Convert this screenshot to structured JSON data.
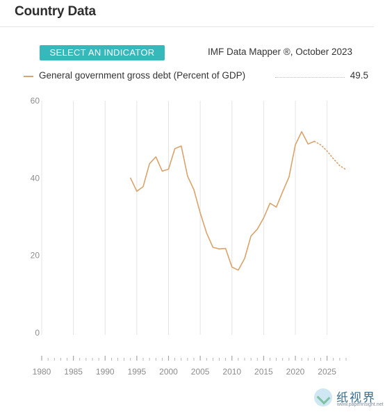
{
  "header": {
    "title": "Country Data"
  },
  "controls": {
    "select_indicator_label": "SELECT AN INDICATOR"
  },
  "source": "IMF Data Mapper ®, October 2023",
  "legend": {
    "label": "General government gross debt (Percent of GDP)",
    "value": "49.5"
  },
  "colors": {
    "series": "#d9a36b",
    "button": "#37b8ba",
    "grid": "#e4e4e4",
    "tick_text": "#8c8c8c"
  },
  "watermark": {
    "text": "纸视界",
    "subtext": "www.paperinsight.net"
  },
  "chart_data": {
    "type": "line",
    "title": "",
    "xlabel": "",
    "ylabel": "",
    "xlim": [
      1980,
      2028
    ],
    "ylim": [
      0,
      60
    ],
    "y_ticks": [
      0,
      20,
      40,
      60
    ],
    "x_ticks": [
      1980,
      1985,
      1990,
      1995,
      2000,
      2005,
      2010,
      2015,
      2020,
      2025
    ],
    "grid": true,
    "legend_position": "top",
    "series": [
      {
        "name": "General government gross debt (Percent of GDP)",
        "style": "solid",
        "x": [
          1994,
          1995,
          1996,
          1997,
          1998,
          1999,
          2000,
          2001,
          2002,
          2003,
          2004,
          2005,
          2006,
          2007,
          2008,
          2009,
          2010,
          2011,
          2012,
          2013,
          2014,
          2015,
          2016,
          2017,
          2018,
          2019,
          2020,
          2021,
          2022,
          2023
        ],
        "y": [
          40.0,
          36.6,
          37.8,
          43.7,
          45.5,
          41.8,
          42.3,
          47.6,
          48.3,
          40.5,
          37.0,
          31.0,
          25.8,
          22.1,
          21.7,
          21.8,
          17.0,
          16.2,
          19.2,
          25.0,
          26.8,
          29.7,
          33.5,
          32.5,
          36.5,
          40.3,
          48.6,
          52.0,
          48.8,
          49.5
        ]
      },
      {
        "name": "General government gross debt (Percent of GDP) projection",
        "style": "dotted",
        "x": [
          2023,
          2024,
          2025,
          2026,
          2027,
          2028
        ],
        "y": [
          49.5,
          48.6,
          47.0,
          45.0,
          43.2,
          42.2
        ]
      }
    ]
  }
}
